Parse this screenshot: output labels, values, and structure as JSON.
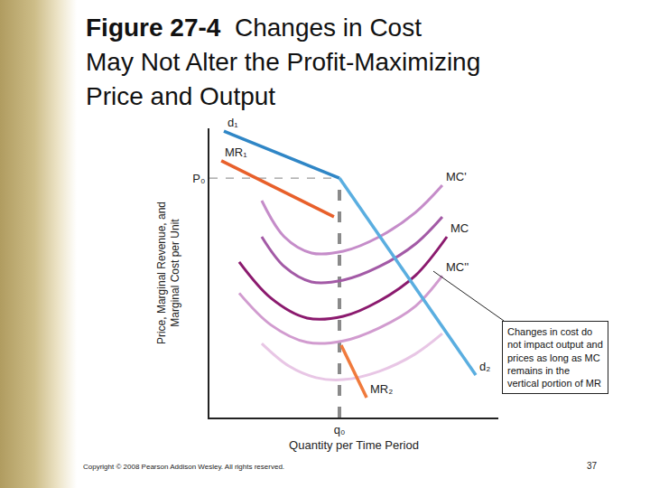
{
  "chart_data": {
    "type": "line",
    "title": [
      "Figure 27-4  Changes in Cost",
      "May Not Alter the Profit-Maximizing",
      "Price and Output"
    ],
    "x_label": "Quantity per Time Period",
    "y_label": [
      "Price, Marginal Revenue, and",
      "Marginal Cost per Unit"
    ],
    "xlim": [
      0,
      10
    ],
    "ylim": [
      0,
      10
    ],
    "xticks": [
      {
        "value": 4.5,
        "label": "q₀"
      }
    ],
    "yticks": [
      {
        "value": 8.28,
        "label": "P₀"
      }
    ],
    "grid": false,
    "series": [
      {
        "name": "MC'",
        "color": "#c58cc9",
        "x": [
          1.81,
          2.59,
          3.53,
          4.63,
          5.88,
          7.13,
          8.06
        ],
        "values": [
          7.5,
          6.25,
          5.69,
          5.75,
          6.25,
          7.09,
          8.03
        ]
      },
      {
        "color": "#a35aa6",
        "x": [
          1.81,
          2.59,
          3.53,
          4.63,
          5.88,
          7.13,
          8.06
        ],
        "values": [
          6.25,
          5.22,
          4.69,
          4.75,
          5.22,
          6.0,
          6.94
        ]
      },
      {
        "name": "MC",
        "color": "#8b1a6e",
        "x": [
          1.03,
          2.13,
          3.38,
          4.63,
          5.88,
          7.13,
          8.22
        ],
        "values": [
          5.38,
          4.13,
          3.44,
          3.5,
          4.03,
          4.91,
          6.25
        ]
      },
      {
        "name": "MC''",
        "color": "#d19bcf",
        "x": [
          1.03,
          2.13,
          3.38,
          4.63,
          5.88,
          7.13,
          8.06
        ],
        "values": [
          4.3,
          3.2,
          2.6,
          2.65,
          3.1,
          3.85,
          4.9
        ]
      },
      {
        "color": "#e8c6e5",
        "x": [
          1.81,
          2.75,
          3.69,
          4.63,
          5.88,
          7.13,
          8.06
        ],
        "values": [
          2.56,
          1.78,
          1.38,
          1.31,
          1.6,
          2.2,
          2.9
        ]
      },
      {
        "name": "MR₁",
        "color": "#e8602b",
        "x": [
          4.31,
          0.41
        ],
        "values": [
          6.94,
          8.88
        ]
      },
      {
        "name": "MR₂",
        "color": "#f07a3c",
        "x": [
          4.56,
          5.44
        ],
        "values": [
          2.5,
          0.69
        ]
      },
      {
        "name": "d₁",
        "color": "#2f86c6",
        "x": [
          4.5,
          0.5
        ],
        "values": [
          8.28,
          9.9
        ]
      },
      {
        "name": "d₂",
        "color": "#5aaee0",
        "x": [
          4.5,
          9.22
        ],
        "values": [
          8.28,
          1.47
        ]
      }
    ],
    "annotations": [
      {
        "text": [
          "Changes in cost do",
          "not impact output and",
          "prices as long as MC",
          "remains in the",
          "vertical portion of MR"
        ]
      }
    ]
  },
  "footer": {
    "copyright": "Copyright © 2008 Pearson Addison Wesley. All rights reserved.",
    "page": 37
  }
}
